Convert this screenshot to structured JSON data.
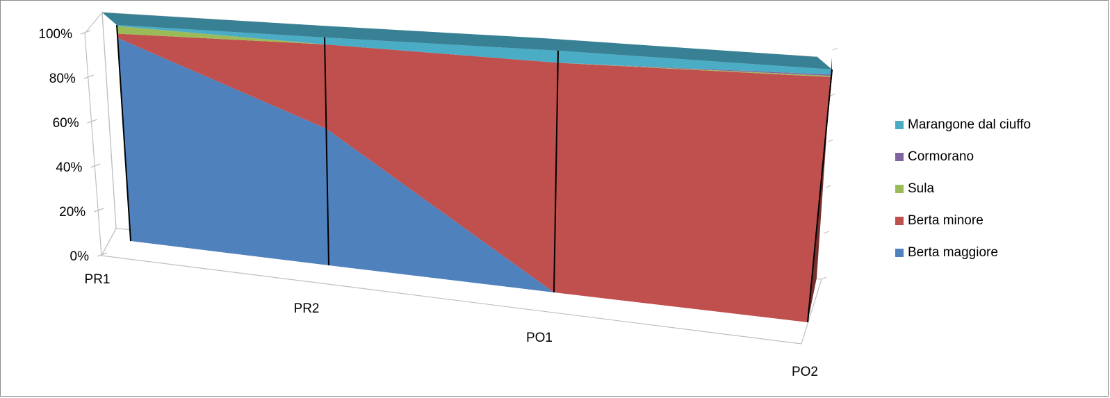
{
  "chart_data": {
    "type": "area",
    "stacking": "percent",
    "categories": [
      "PR1",
      "PR2",
      "PO1",
      "PO2"
    ],
    "series": [
      {
        "name": "Berta maggiore",
        "color": "#4F81BD",
        "values": [
          94,
          60,
          0,
          0
        ]
      },
      {
        "name": "Berta minore",
        "color": "#C0504D",
        "values": [
          2,
          37,
          95,
          97
        ]
      },
      {
        "name": "Sula",
        "color": "#9BBB59",
        "values": [
          3.5,
          0,
          0,
          0.5
        ]
      },
      {
        "name": "Cormorano",
        "color": "#8064A2",
        "values": [
          0,
          0,
          0,
          0.5
        ]
      },
      {
        "name": "Marangone dal ciuffo",
        "color": "#4BACC6",
        "values": [
          0.5,
          3,
          5,
          2
        ]
      }
    ],
    "y_tick_labels": [
      "0%",
      "20%",
      "40%",
      "60%",
      "80%",
      "100%"
    ],
    "ylim": [
      0,
      100
    ],
    "legend_position": "right",
    "perspective": "3d",
    "gridlines": false
  }
}
